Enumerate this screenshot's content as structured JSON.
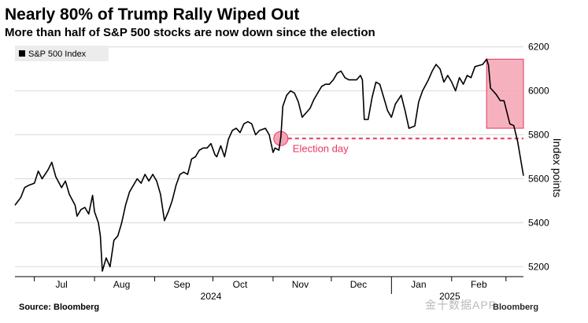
{
  "header": {
    "title": "Nearly 80% of Trump Rally Wiped Out",
    "subtitle": "More than half of S&P 500 stocks are now down since the election"
  },
  "footer": {
    "source": "Source: Bloomberg",
    "watermark": "金十数据APP",
    "brand_mark": "Bloomberg"
  },
  "colors": {
    "line": "#000000",
    "accent": "#e8365d",
    "highlight_fill": "#f4a3b4",
    "grid": "#d9d9d9"
  },
  "chart_data": {
    "type": "line",
    "title": "Nearly 80% of Trump Rally Wiped Out",
    "subtitle": "More than half of S&P 500 stocks are now down since the election",
    "xlabel": "",
    "ylabel": "Index points",
    "y_axis_side": "right",
    "ylim": [
      5150,
      6230
    ],
    "yticks": [
      5200,
      5400,
      5600,
      5800,
      6000,
      6200
    ],
    "grid": true,
    "legend": {
      "position": "top-left",
      "entries": [
        "S&P 500 Index"
      ]
    },
    "x_start": "2024-06-21",
    "x_end": "2025-03-10",
    "month_ticks": [
      {
        "label": "Jul",
        "date": "2024-07-15"
      },
      {
        "label": "Aug",
        "date": "2024-08-15"
      },
      {
        "label": "Sep",
        "date": "2024-09-15"
      },
      {
        "label": "Oct",
        "date": "2024-10-15"
      },
      {
        "label": "Nov",
        "date": "2024-11-15"
      },
      {
        "label": "Dec",
        "date": "2024-12-15"
      },
      {
        "label": "Jan",
        "date": "2025-01-15"
      },
      {
        "label": "Feb",
        "date": "2025-02-15"
      }
    ],
    "year_labels": [
      {
        "label": "2024",
        "date": "2024-09-30"
      },
      {
        "label": "2025",
        "date": "2025-01-31"
      }
    ],
    "series": [
      {
        "name": "S&P 500 Index",
        "points": [
          [
            "2024-06-21",
            5480
          ],
          [
            "2024-06-24",
            5515
          ],
          [
            "2024-06-26",
            5560
          ],
          [
            "2024-06-28",
            5570
          ],
          [
            "2024-07-01",
            5580
          ],
          [
            "2024-07-03",
            5635
          ],
          [
            "2024-07-05",
            5600
          ],
          [
            "2024-07-08",
            5640
          ],
          [
            "2024-07-10",
            5675
          ],
          [
            "2024-07-12",
            5610
          ],
          [
            "2024-07-15",
            5560
          ],
          [
            "2024-07-17",
            5590
          ],
          [
            "2024-07-19",
            5530
          ],
          [
            "2024-07-22",
            5480
          ],
          [
            "2024-07-23",
            5430
          ],
          [
            "2024-07-25",
            5460
          ],
          [
            "2024-07-27",
            5470
          ],
          [
            "2024-07-29",
            5440
          ],
          [
            "2024-07-31",
            5525
          ],
          [
            "2024-08-01",
            5450
          ],
          [
            "2024-08-03",
            5400
          ],
          [
            "2024-08-04",
            5340
          ],
          [
            "2024-08-05",
            5180
          ],
          [
            "2024-08-07",
            5240
          ],
          [
            "2024-08-09",
            5200
          ],
          [
            "2024-08-11",
            5320
          ],
          [
            "2024-08-13",
            5340
          ],
          [
            "2024-08-15",
            5400
          ],
          [
            "2024-08-17",
            5480
          ],
          [
            "2024-08-19",
            5540
          ],
          [
            "2024-08-21",
            5570
          ],
          [
            "2024-08-23",
            5600
          ],
          [
            "2024-08-25",
            5580
          ],
          [
            "2024-08-27",
            5620
          ],
          [
            "2024-08-29",
            5590
          ],
          [
            "2024-08-31",
            5620
          ],
          [
            "2024-09-02",
            5590
          ],
          [
            "2024-09-04",
            5530
          ],
          [
            "2024-09-06",
            5410
          ],
          [
            "2024-09-08",
            5450
          ],
          [
            "2024-09-10",
            5500
          ],
          [
            "2024-09-12",
            5570
          ],
          [
            "2024-09-14",
            5620
          ],
          [
            "2024-09-16",
            5630
          ],
          [
            "2024-09-18",
            5620
          ],
          [
            "2024-09-20",
            5690
          ],
          [
            "2024-09-22",
            5700
          ],
          [
            "2024-09-24",
            5730
          ],
          [
            "2024-09-26",
            5740
          ],
          [
            "2024-09-28",
            5740
          ],
          [
            "2024-09-30",
            5760
          ],
          [
            "2024-10-02",
            5710
          ],
          [
            "2024-10-03",
            5700
          ],
          [
            "2024-10-05",
            5750
          ],
          [
            "2024-10-07",
            5700
          ],
          [
            "2024-10-09",
            5780
          ],
          [
            "2024-10-11",
            5820
          ],
          [
            "2024-10-13",
            5830
          ],
          [
            "2024-10-15",
            5810
          ],
          [
            "2024-10-17",
            5850
          ],
          [
            "2024-10-19",
            5860
          ],
          [
            "2024-10-21",
            5850
          ],
          [
            "2024-10-23",
            5800
          ],
          [
            "2024-10-25",
            5820
          ],
          [
            "2024-10-28",
            5830
          ],
          [
            "2024-10-30",
            5800
          ],
          [
            "2024-11-01",
            5720
          ],
          [
            "2024-11-02",
            5740
          ],
          [
            "2024-11-04",
            5730
          ],
          [
            "2024-11-05",
            5790
          ],
          [
            "2024-11-06",
            5930
          ],
          [
            "2024-11-08",
            5980
          ],
          [
            "2024-11-10",
            6000
          ],
          [
            "2024-11-12",
            5990
          ],
          [
            "2024-11-14",
            5950
          ],
          [
            "2024-11-16",
            5880
          ],
          [
            "2024-11-18",
            5900
          ],
          [
            "2024-11-20",
            5920
          ],
          [
            "2024-11-22",
            5960
          ],
          [
            "2024-11-24",
            5990
          ],
          [
            "2024-11-26",
            6020
          ],
          [
            "2024-11-28",
            6030
          ],
          [
            "2024-11-30",
            6030
          ],
          [
            "2024-12-02",
            6050
          ],
          [
            "2024-12-04",
            6080
          ],
          [
            "2024-12-06",
            6090
          ],
          [
            "2024-12-08",
            6060
          ],
          [
            "2024-12-10",
            6050
          ],
          [
            "2024-12-12",
            6050
          ],
          [
            "2024-12-14",
            6050
          ],
          [
            "2024-12-16",
            6070
          ],
          [
            "2024-12-17",
            6050
          ],
          [
            "2024-12-18",
            5870
          ],
          [
            "2024-12-20",
            5870
          ],
          [
            "2024-12-22",
            5970
          ],
          [
            "2024-12-24",
            6040
          ],
          [
            "2024-12-26",
            6030
          ],
          [
            "2024-12-28",
            5970
          ],
          [
            "2024-12-30",
            5910
          ],
          [
            "2025-01-01",
            5880
          ],
          [
            "2025-01-03",
            5940
          ],
          [
            "2025-01-06",
            5980
          ],
          [
            "2025-01-08",
            5910
          ],
          [
            "2025-01-10",
            5830
          ],
          [
            "2025-01-13",
            5840
          ],
          [
            "2025-01-15",
            5950
          ],
          [
            "2025-01-17",
            6000
          ],
          [
            "2025-01-20",
            6050
          ],
          [
            "2025-01-22",
            6090
          ],
          [
            "2025-01-24",
            6120
          ],
          [
            "2025-01-26",
            6100
          ],
          [
            "2025-01-28",
            6040
          ],
          [
            "2025-01-30",
            6070
          ],
          [
            "2025-02-01",
            6040
          ],
          [
            "2025-02-03",
            6000
          ],
          [
            "2025-02-05",
            6060
          ],
          [
            "2025-02-07",
            6030
          ],
          [
            "2025-02-09",
            6070
          ],
          [
            "2025-02-11",
            6060
          ],
          [
            "2025-02-13",
            6110
          ],
          [
            "2025-02-15",
            6115
          ],
          [
            "2025-02-17",
            6120
          ],
          [
            "2025-02-19",
            6144
          ],
          [
            "2025-02-20",
            6117
          ],
          [
            "2025-02-21",
            6013
          ],
          [
            "2025-02-24",
            5983
          ],
          [
            "2025-02-26",
            5956
          ],
          [
            "2025-02-28",
            5955
          ],
          [
            "2025-03-03",
            5850
          ],
          [
            "2025-03-05",
            5842
          ],
          [
            "2025-03-07",
            5770
          ],
          [
            "2025-03-10",
            5614
          ]
        ]
      }
    ],
    "annotations": [
      {
        "type": "hline",
        "y": 5783,
        "style": "dashed",
        "color": "#e8365d",
        "from": "2024-11-05",
        "label": "Election day"
      },
      {
        "type": "marker",
        "x": "2024-11-05",
        "y": 5783,
        "shape": "circle",
        "color": "#e8365d"
      },
      {
        "type": "shaded_box",
        "x_from": "2025-02-19",
        "x_to": "2025-03-10",
        "y_from": 5830,
        "y_to": 6144,
        "color": "#f4a3b4"
      }
    ]
  }
}
